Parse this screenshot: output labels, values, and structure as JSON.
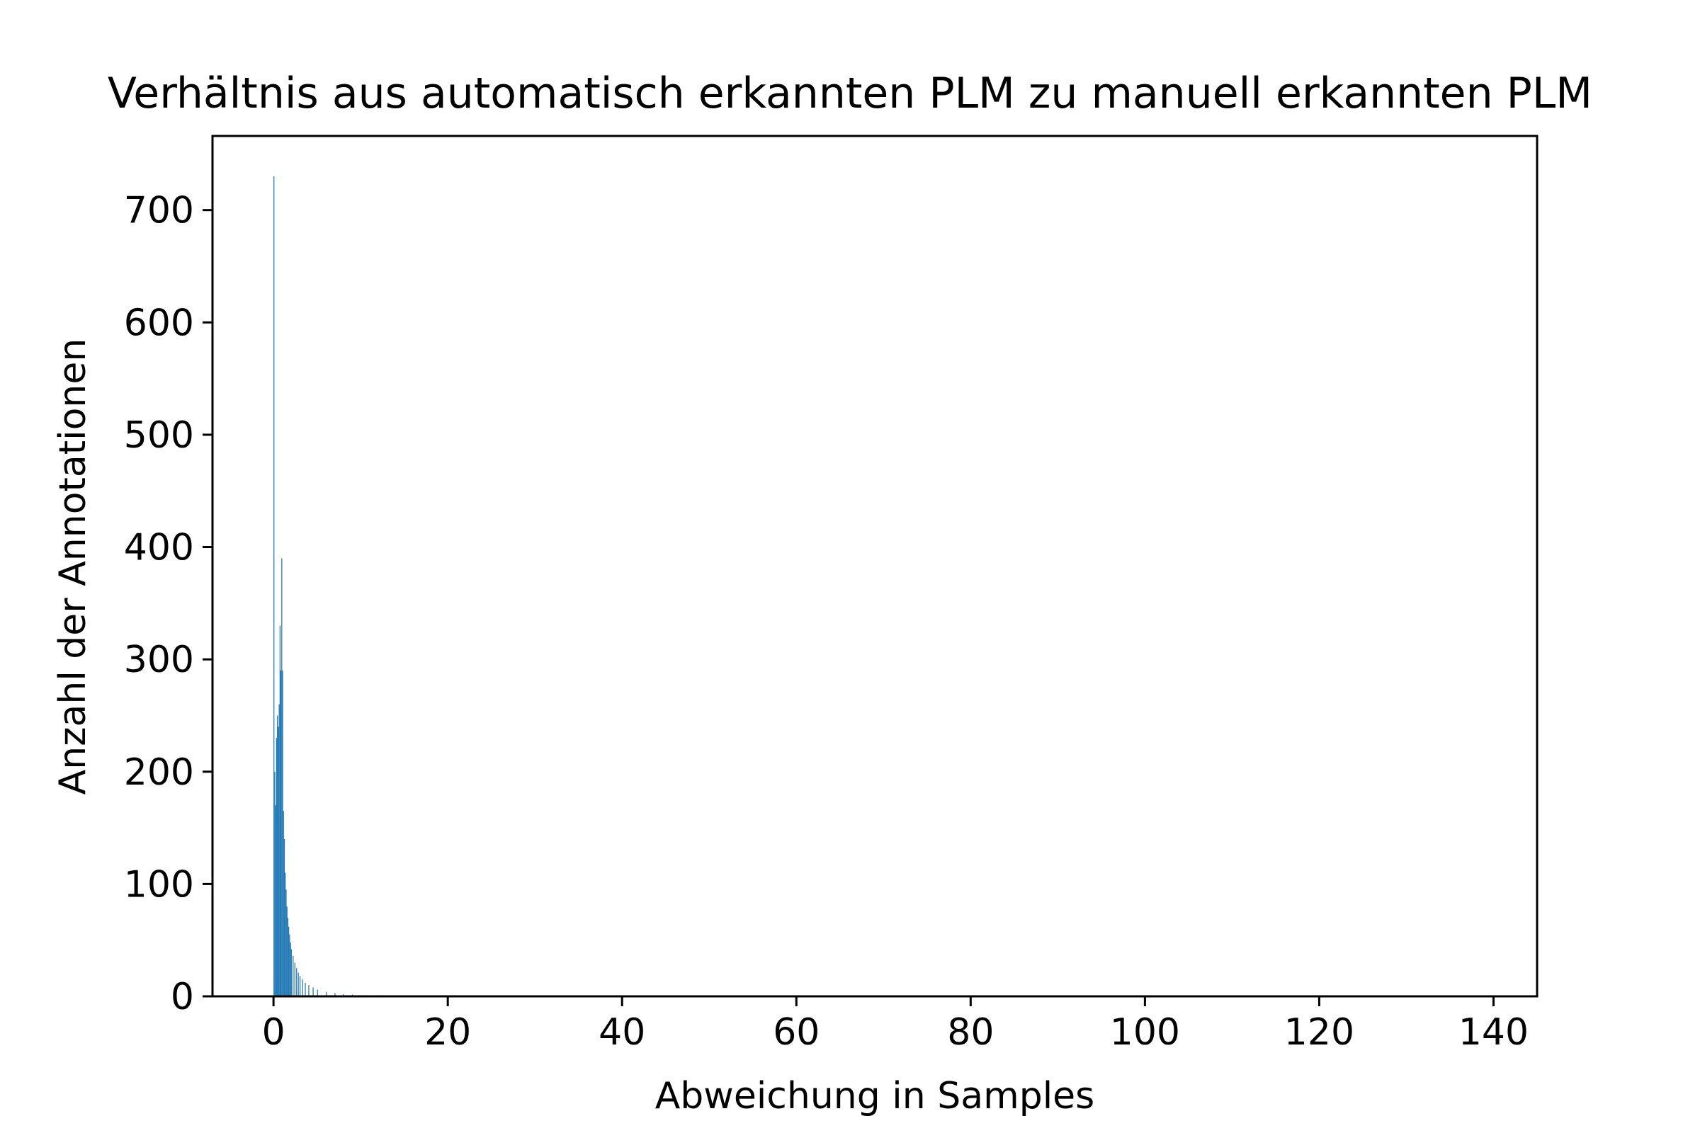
{
  "chart_data": {
    "type": "bar",
    "title": "Verhältnis aus automatisch erkannten PLM zu manuell erkannten PLM",
    "xlabel": "Abweichung in Samples",
    "ylabel": "Anzahl der Annotationen",
    "xlim": [
      -7,
      145
    ],
    "ylim": [
      0,
      766
    ],
    "xticks": [
      0,
      20,
      40,
      60,
      80,
      100,
      120,
      140
    ],
    "yticks": [
      0,
      100,
      200,
      300,
      400,
      500,
      600,
      700
    ],
    "xtick_labels": [
      "0",
      "20",
      "40",
      "60",
      "80",
      "100",
      "120",
      "140"
    ],
    "ytick_labels": [
      "0",
      "100",
      "200",
      "300",
      "400",
      "500",
      "600",
      "700"
    ],
    "grid": false,
    "bar_color": "#1f77b4",
    "bin_width": 0.1,
    "bins": [
      {
        "x": 0.0,
        "value": 730
      },
      {
        "x": 0.1,
        "value": 200
      },
      {
        "x": 0.2,
        "value": 170
      },
      {
        "x": 0.3,
        "value": 230
      },
      {
        "x": 0.4,
        "value": 250
      },
      {
        "x": 0.5,
        "value": 240
      },
      {
        "x": 0.6,
        "value": 260
      },
      {
        "x": 0.7,
        "value": 330
      },
      {
        "x": 0.8,
        "value": 290
      },
      {
        "x": 0.9,
        "value": 390
      },
      {
        "x": 1.0,
        "value": 290
      },
      {
        "x": 1.1,
        "value": 165
      },
      {
        "x": 1.2,
        "value": 140
      },
      {
        "x": 1.3,
        "value": 110
      },
      {
        "x": 1.4,
        "value": 95
      },
      {
        "x": 1.5,
        "value": 80
      },
      {
        "x": 1.6,
        "value": 70
      },
      {
        "x": 1.7,
        "value": 62
      },
      {
        "x": 1.8,
        "value": 55
      },
      {
        "x": 1.9,
        "value": 48
      },
      {
        "x": 2.0,
        "value": 42
      },
      {
        "x": 2.2,
        "value": 36
      },
      {
        "x": 2.4,
        "value": 30
      },
      {
        "x": 2.6,
        "value": 25
      },
      {
        "x": 2.8,
        "value": 21
      },
      {
        "x": 3.0,
        "value": 18
      },
      {
        "x": 3.3,
        "value": 15
      },
      {
        "x": 3.6,
        "value": 12
      },
      {
        "x": 4.0,
        "value": 10
      },
      {
        "x": 4.5,
        "value": 8
      },
      {
        "x": 5.0,
        "value": 6
      },
      {
        "x": 6.0,
        "value": 4
      },
      {
        "x": 7.0,
        "value": 3
      },
      {
        "x": 8.0,
        "value": 2
      },
      {
        "x": 9.0,
        "value": 1.5
      },
      {
        "x": 10.0,
        "value": 1
      },
      {
        "x": 12.0,
        "value": 1
      },
      {
        "x": 15.0,
        "value": 0.5
      },
      {
        "x": 18.0,
        "value": 0.5
      }
    ]
  }
}
